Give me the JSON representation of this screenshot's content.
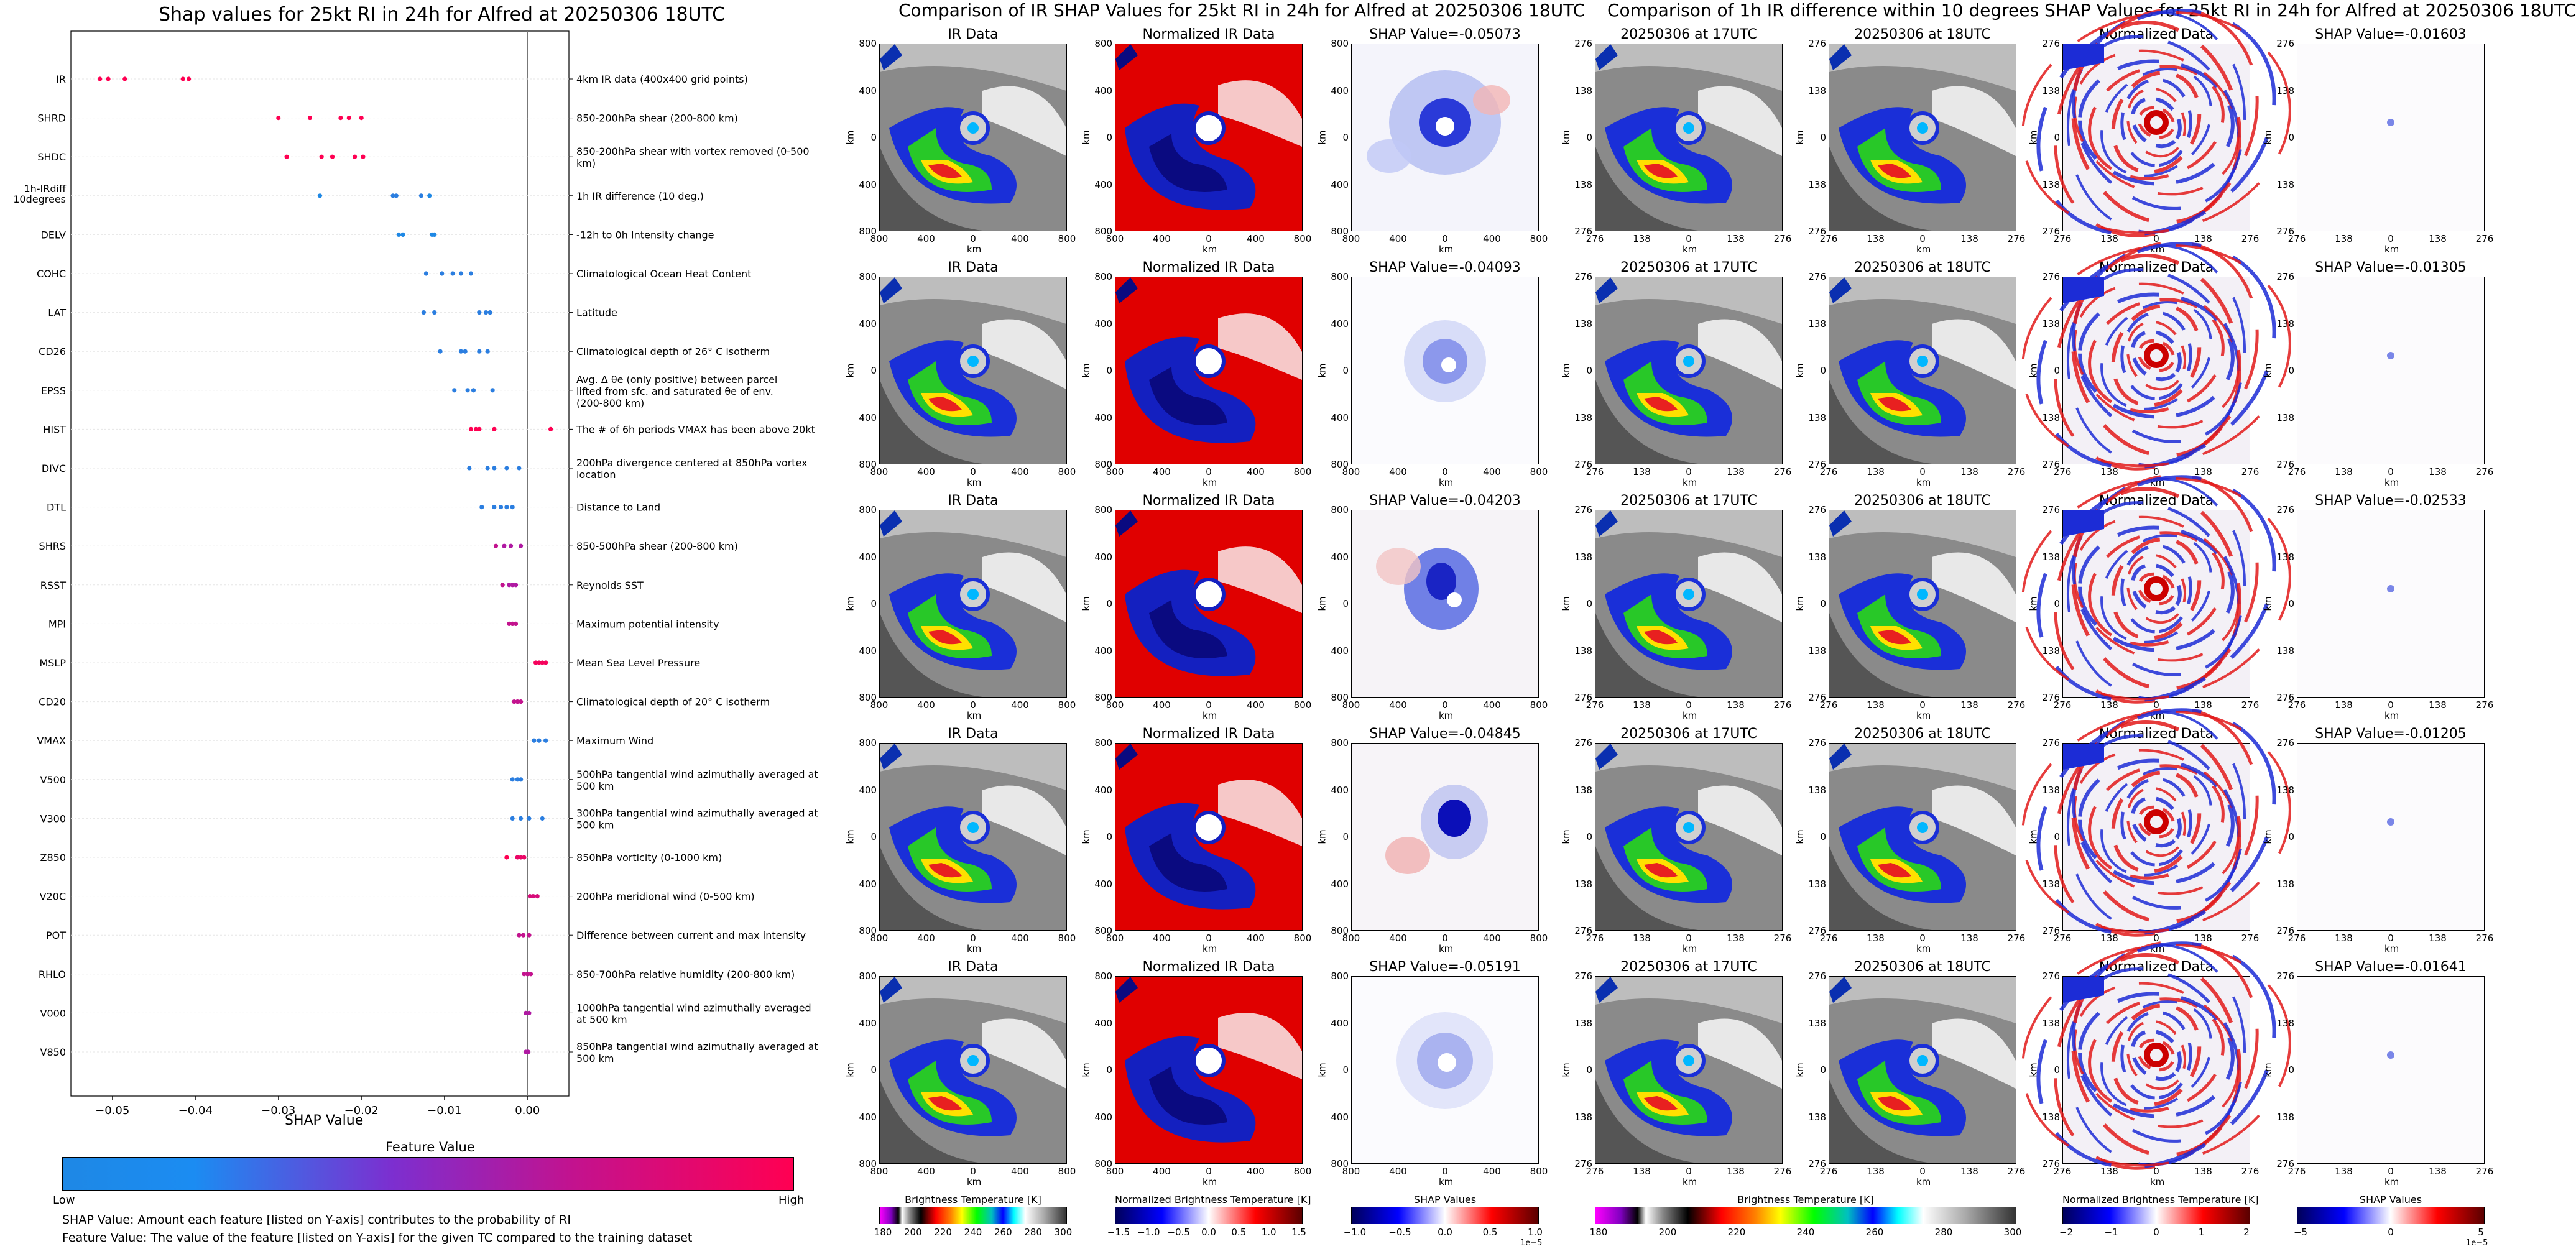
{
  "left_chart": {
    "title": "Shap values for 25kt RI in 24h for Alfred at 20250306 18UTC",
    "xlabel": "SHAP Value",
    "x_ticks": [
      "−0.05",
      "−0.04",
      "−0.03",
      "−0.02",
      "−0.01",
      "0.00"
    ],
    "colorbar_title": "Feature Value",
    "colorbar_low": "Low",
    "colorbar_high": "High",
    "note1": "SHAP Value: Amount each feature [listed on Y-axis] contributes to the probability of RI",
    "note2": "Feature Value: The value of the feature [listed on Y-axis] for the given TC compared to the training dataset",
    "colors": {
      "low": "#1e88e5",
      "mid": "#9b1fb6",
      "high": "#ff0052"
    }
  },
  "chart_data": {
    "type": "scatter",
    "title": "Shap values for 25kt RI in 24h for Alfred at 20250306 18UTC",
    "xlabel": "SHAP Value",
    "xlim": [
      -0.055,
      0.005
    ],
    "features": [
      {
        "code": "IR",
        "desc": "4km IR data (400x400 grid points)",
        "points": [
          [
            -0.0515,
            1
          ],
          [
            -0.0505,
            1
          ],
          [
            -0.0485,
            1
          ],
          [
            -0.0415,
            1
          ],
          [
            -0.0408,
            1
          ]
        ]
      },
      {
        "code": "SHRD",
        "desc": "850-200hPa shear (200-800 km)",
        "points": [
          [
            -0.03,
            1
          ],
          [
            -0.0262,
            1
          ],
          [
            -0.0225,
            1
          ],
          [
            -0.0215,
            1
          ],
          [
            -0.02,
            1
          ]
        ]
      },
      {
        "code": "SHDC",
        "desc": "850-200hPa shear with vortex removed (0-500 km)",
        "points": [
          [
            -0.029,
            1
          ],
          [
            -0.0248,
            1
          ],
          [
            -0.0235,
            1
          ],
          [
            -0.0208,
            1
          ],
          [
            -0.0198,
            1
          ]
        ]
      },
      {
        "code": "1h-IRdiff 10degrees",
        "desc": "1h IR difference (10 deg.)",
        "points": [
          [
            -0.025,
            0
          ],
          [
            -0.0162,
            0.05
          ],
          [
            -0.0158,
            0.05
          ],
          [
            -0.0128,
            0.05
          ],
          [
            -0.0118,
            0
          ]
        ]
      },
      {
        "code": "DELV",
        "desc": "-12h to 0h Intensity change",
        "points": [
          [
            -0.0155,
            0
          ],
          [
            -0.015,
            0
          ],
          [
            -0.0115,
            0
          ],
          [
            -0.0112,
            0
          ]
        ]
      },
      {
        "code": "COHC",
        "desc": "Climatological Ocean Heat Content",
        "points": [
          [
            -0.0122,
            0.05
          ],
          [
            -0.0103,
            0.05
          ],
          [
            -0.009,
            0.05
          ],
          [
            -0.008,
            0.05
          ],
          [
            -0.0068,
            0.05
          ]
        ]
      },
      {
        "code": "LAT",
        "desc": "Latitude",
        "points": [
          [
            -0.0125,
            0.05
          ],
          [
            -0.0112,
            0.05
          ],
          [
            -0.0058,
            0.05
          ],
          [
            -0.005,
            0.05
          ],
          [
            -0.0045,
            0.05
          ]
        ]
      },
      {
        "code": "CD26",
        "desc": "Climatological depth of 26° C isotherm",
        "points": [
          [
            -0.0105,
            0.05
          ],
          [
            -0.008,
            0.05
          ],
          [
            -0.0075,
            0.05
          ],
          [
            -0.0058,
            0.05
          ],
          [
            -0.0048,
            0.05
          ]
        ]
      },
      {
        "code": "EPSS",
        "desc": "Avg. Δ θe (only positive) between parcel lifted from sfc. and saturated θe of env. (200-800 km)",
        "points": [
          [
            -0.0088,
            0.05
          ],
          [
            -0.0072,
            0.05
          ],
          [
            -0.0065,
            0.05
          ],
          [
            -0.0042,
            0.05
          ]
        ]
      },
      {
        "code": "HIST",
        "desc": "The # of 6h periods VMAX has been above 20kt",
        "points": [
          [
            -0.0068,
            1
          ],
          [
            -0.0062,
            1
          ],
          [
            -0.0058,
            1
          ],
          [
            -0.004,
            1
          ],
          [
            0.0028,
            1
          ]
        ]
      },
      {
        "code": "DIVC",
        "desc": "200hPa divergence centered at 850hPa vortex location",
        "points": [
          [
            -0.007,
            0.05
          ],
          [
            -0.0048,
            0.05
          ],
          [
            -0.004,
            0.05
          ],
          [
            -0.0025,
            0.05
          ],
          [
            -0.001,
            0.05
          ]
        ]
      },
      {
        "code": "DTL",
        "desc": "Distance to Land",
        "points": [
          [
            -0.0055,
            0.05
          ],
          [
            -0.004,
            0.05
          ],
          [
            -0.0032,
            0.05
          ],
          [
            -0.0025,
            0.05
          ],
          [
            -0.0018,
            0.05
          ]
        ]
      },
      {
        "code": "SHRS",
        "desc": "850-500hPa shear (200-800 km)",
        "points": [
          [
            -0.0038,
            0.7
          ],
          [
            -0.0028,
            0.6
          ],
          [
            -0.002,
            0.6
          ],
          [
            -0.0008,
            0.6
          ]
        ]
      },
      {
        "code": "RSST",
        "desc": "Reynolds SST",
        "points": [
          [
            -0.003,
            0.7
          ],
          [
            -0.0022,
            0.6
          ],
          [
            -0.0018,
            0.6
          ],
          [
            -0.0014,
            0.6
          ]
        ]
      },
      {
        "code": "MPI",
        "desc": "Maximum potential intensity",
        "points": [
          [
            -0.0022,
            0.7
          ],
          [
            -0.0018,
            0.7
          ],
          [
            -0.0014,
            0.7
          ]
        ]
      },
      {
        "code": "MSLP",
        "desc": "Mean Sea Level Pressure",
        "points": [
          [
            0.001,
            0.95
          ],
          [
            0.0014,
            0.95
          ],
          [
            0.0018,
            0.95
          ],
          [
            0.0022,
            0.95
          ]
        ]
      },
      {
        "code": "CD20",
        "desc": "Climatological depth of 20° C isotherm",
        "points": [
          [
            -0.0016,
            0.7
          ],
          [
            -0.0012,
            0.7
          ],
          [
            -0.0008,
            0.7
          ]
        ]
      },
      {
        "code": "VMAX",
        "desc": "Maximum Wind",
        "points": [
          [
            0.0008,
            0.05
          ],
          [
            0.0014,
            0.05
          ],
          [
            0.0022,
            0.05
          ]
        ]
      },
      {
        "code": "V500",
        "desc": "500hPa tangential wind azimuthally averaged at 500 km",
        "points": [
          [
            -0.0018,
            0.05
          ],
          [
            -0.0012,
            0.05
          ],
          [
            -0.0008,
            0.05
          ]
        ]
      },
      {
        "code": "V300",
        "desc": "300hPa tangential wind azimuthally averaged at 500 km",
        "points": [
          [
            -0.0018,
            0.05
          ],
          [
            -0.0008,
            0.05
          ],
          [
            0.0002,
            0.05
          ],
          [
            0.0018,
            0.05
          ]
        ]
      },
      {
        "code": "Z850",
        "desc": "850hPa vorticity (0-1000 km)",
        "points": [
          [
            -0.0025,
            1
          ],
          [
            -0.0012,
            0.9
          ],
          [
            -0.0008,
            0.9
          ],
          [
            -0.0004,
            0.9
          ]
        ]
      },
      {
        "code": "V20C",
        "desc": "200hPa meridional wind (0-500 km)",
        "points": [
          [
            0.0003,
            0.8
          ],
          [
            0.0007,
            0.8
          ],
          [
            0.0012,
            0.8
          ]
        ]
      },
      {
        "code": "POT",
        "desc": "Difference between current and max intensity",
        "points": [
          [
            -0.001,
            0.7
          ],
          [
            -0.0005,
            0.7
          ],
          [
            0.0002,
            0.7
          ]
        ]
      },
      {
        "code": "RHLO",
        "desc": "850-700hPa relative humidity (200-800 km)",
        "points": [
          [
            -0.0004,
            0.7
          ],
          [
            0.0,
            0.7
          ],
          [
            0.0004,
            0.7
          ]
        ]
      },
      {
        "code": "V000",
        "desc": "1000hPa tangential wind azimuthally averaged at 500 km",
        "points": [
          [
            -0.0002,
            0.6
          ],
          [
            0.0002,
            0.6
          ]
        ]
      },
      {
        "code": "V850",
        "desc": "850hPa tangential wind azimuthally averaged at 500 km",
        "points": [
          [
            -0.0002,
            0.6
          ],
          [
            0.0001,
            0.6
          ]
        ]
      }
    ]
  },
  "ir_section": {
    "title": "Comparison of IR SHAP Values for 25kt RI in 24h for Alfred at 20250306 18UTC",
    "col_titles": [
      "IR Data",
      "Normalized IR Data"
    ],
    "shap_titles": [
      "SHAP Value=-0.05073",
      "SHAP Value=-0.04093",
      "SHAP Value=-0.04203",
      "SHAP Value=-0.04845",
      "SHAP Value=-0.05191"
    ],
    "x_ticks": [
      "800",
      "400",
      "0",
      "400",
      "800"
    ],
    "y_ticks": [
      "800",
      "400",
      "0",
      "400",
      "800"
    ],
    "axis_label": "km",
    "cbar_labels": [
      "Brightness Temperature [K]",
      "Normalized Brightness Temperature [K]",
      "SHAP Values"
    ],
    "cbar_ticks": [
      [
        "180",
        "200",
        "220",
        "240",
        "260",
        "280",
        "300"
      ],
      [
        "−1.5",
        "−1.0",
        "−0.5",
        "0.0",
        "0.5",
        "1.0",
        "1.5"
      ],
      [
        "−1.0",
        "−0.5",
        "0.0",
        "0.5",
        "1.0"
      ]
    ],
    "cbar_exponent": "1e−5"
  },
  "diff_section": {
    "title": "Comparison of 1h IR difference within 10 degrees SHAP Values for 25kt RI in 24h for Alfred at 20250306 18UTC",
    "col_titles": [
      "20250306 at 17UTC",
      "20250306 at 18UTC",
      "Normalized Data"
    ],
    "shap_titles": [
      "SHAP Value=-0.01603",
      "SHAP Value=-0.01305",
      "SHAP Value=-0.02533",
      "SHAP Value=-0.01205",
      "SHAP Value=-0.01641"
    ],
    "x_ticks": [
      "276",
      "138",
      "0",
      "138",
      "276"
    ],
    "y_ticks": [
      "276",
      "138",
      "0",
      "138",
      "276"
    ],
    "axis_label": "km",
    "cbar_labels": [
      "Brightness Temperature [K]",
      "Normalized Brightness Temperature [K]",
      "SHAP Values"
    ],
    "cbar_ticks": [
      [
        "180",
        "200",
        "220",
        "240",
        "260",
        "280",
        "300"
      ],
      [
        "−2",
        "−1",
        "0",
        "1",
        "2"
      ],
      [
        "−5",
        "0",
        "5"
      ]
    ],
    "cbar_exponent": "1e−5"
  }
}
